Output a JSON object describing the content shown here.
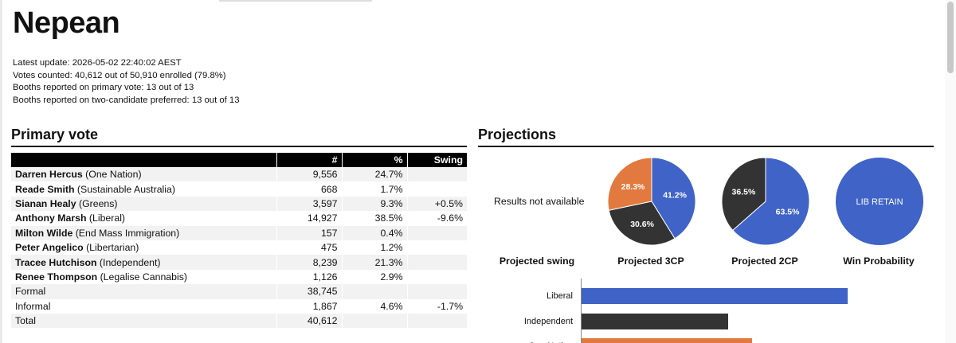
{
  "page": {
    "title": "Nepean",
    "meta": {
      "latest_update": "Latest update: 2026-05-02 22:40:02 AEST",
      "votes_counted": "Votes counted: 40,612 out of 50,910 enrolled (79.8%)",
      "booths_primary": "Booths reported on primary vote: 13 out of 13",
      "booths_2cp": "Booths reported on two-candidate preferred: 13 out of 13"
    }
  },
  "primary": {
    "heading": "Primary vote",
    "columns": [
      "",
      "#",
      "%",
      "Swing"
    ],
    "rows": [
      {
        "name": "Darren Hercus",
        "party": " (One Nation)",
        "votes": "9,556",
        "pct": "24.7%",
        "swing": ""
      },
      {
        "name": "Reade Smith",
        "party": " (Sustainable Australia)",
        "votes": "668",
        "pct": "1.7%",
        "swing": ""
      },
      {
        "name": "Sianan Healy",
        "party": " (Greens)",
        "votes": "3,597",
        "pct": "9.3%",
        "swing": "+0.5%"
      },
      {
        "name": "Anthony Marsh",
        "party": " (Liberal)",
        "votes": "14,927",
        "pct": "38.5%",
        "swing": "-9.6%"
      },
      {
        "name": "Milton Wilde",
        "party": " (End Mass Immigration)",
        "votes": "157",
        "pct": "0.4%",
        "swing": ""
      },
      {
        "name": "Peter Angelico",
        "party": " (Libertarian)",
        "votes": "475",
        "pct": "1.2%",
        "swing": ""
      },
      {
        "name": "Tracee Hutchison",
        "party": " (Independent)",
        "votes": "8,239",
        "pct": "21.3%",
        "swing": ""
      },
      {
        "name": "Renee Thompson",
        "party": " (Legalise Cannabis)",
        "votes": "1,126",
        "pct": "2.9%",
        "swing": ""
      },
      {
        "name": "",
        "party": "Formal",
        "votes": "38,745",
        "pct": "",
        "swing": ""
      },
      {
        "name": "",
        "party": "Informal",
        "votes": "1,867",
        "pct": "4.6%",
        "swing": "-1.7%"
      },
      {
        "name": "",
        "party": "Total",
        "votes": "40,612",
        "pct": "",
        "swing": ""
      }
    ]
  },
  "projections": {
    "heading": "Projections",
    "swing_placeholder": "Results not available",
    "labels": {
      "swing": "Projected swing",
      "three_cp": "Projected 3CP",
      "two_cp": "Projected 2CP",
      "win_prob": "Win Probability"
    }
  },
  "colors": {
    "liberal": "#3f63c6",
    "independent": "#333333",
    "one_nation": "#e27a3f"
  },
  "chart_data": [
    {
      "type": "pie",
      "title": "Projected 3CP",
      "slices": [
        {
          "label": "41.2%",
          "value": 41.2,
          "color": "#3f63c6"
        },
        {
          "label": "30.6%",
          "value": 30.6,
          "color": "#333333"
        },
        {
          "label": "28.3%",
          "value": 28.3,
          "color": "#e27a3f"
        }
      ]
    },
    {
      "type": "pie",
      "title": "Projected 2CP",
      "slices": [
        {
          "label": "63.5%",
          "value": 63.5,
          "color": "#3f63c6"
        },
        {
          "label": "36.5%",
          "value": 36.5,
          "color": "#333333"
        }
      ]
    },
    {
      "type": "pie",
      "title": "Win Probability",
      "slices": [
        {
          "label": "LIB RETAIN",
          "value": 100,
          "color": "#3f63c6"
        }
      ]
    },
    {
      "type": "bar",
      "orientation": "horizontal",
      "categories": [
        "Liberal",
        "Independent",
        "One Nation"
      ],
      "values": [
        1.0,
        0.55,
        0.64
      ],
      "value_unit": "fraction of axis width (estimated, unlabeled)",
      "colors": [
        "#3f63c6",
        "#333333",
        "#e27a3f"
      ]
    }
  ]
}
